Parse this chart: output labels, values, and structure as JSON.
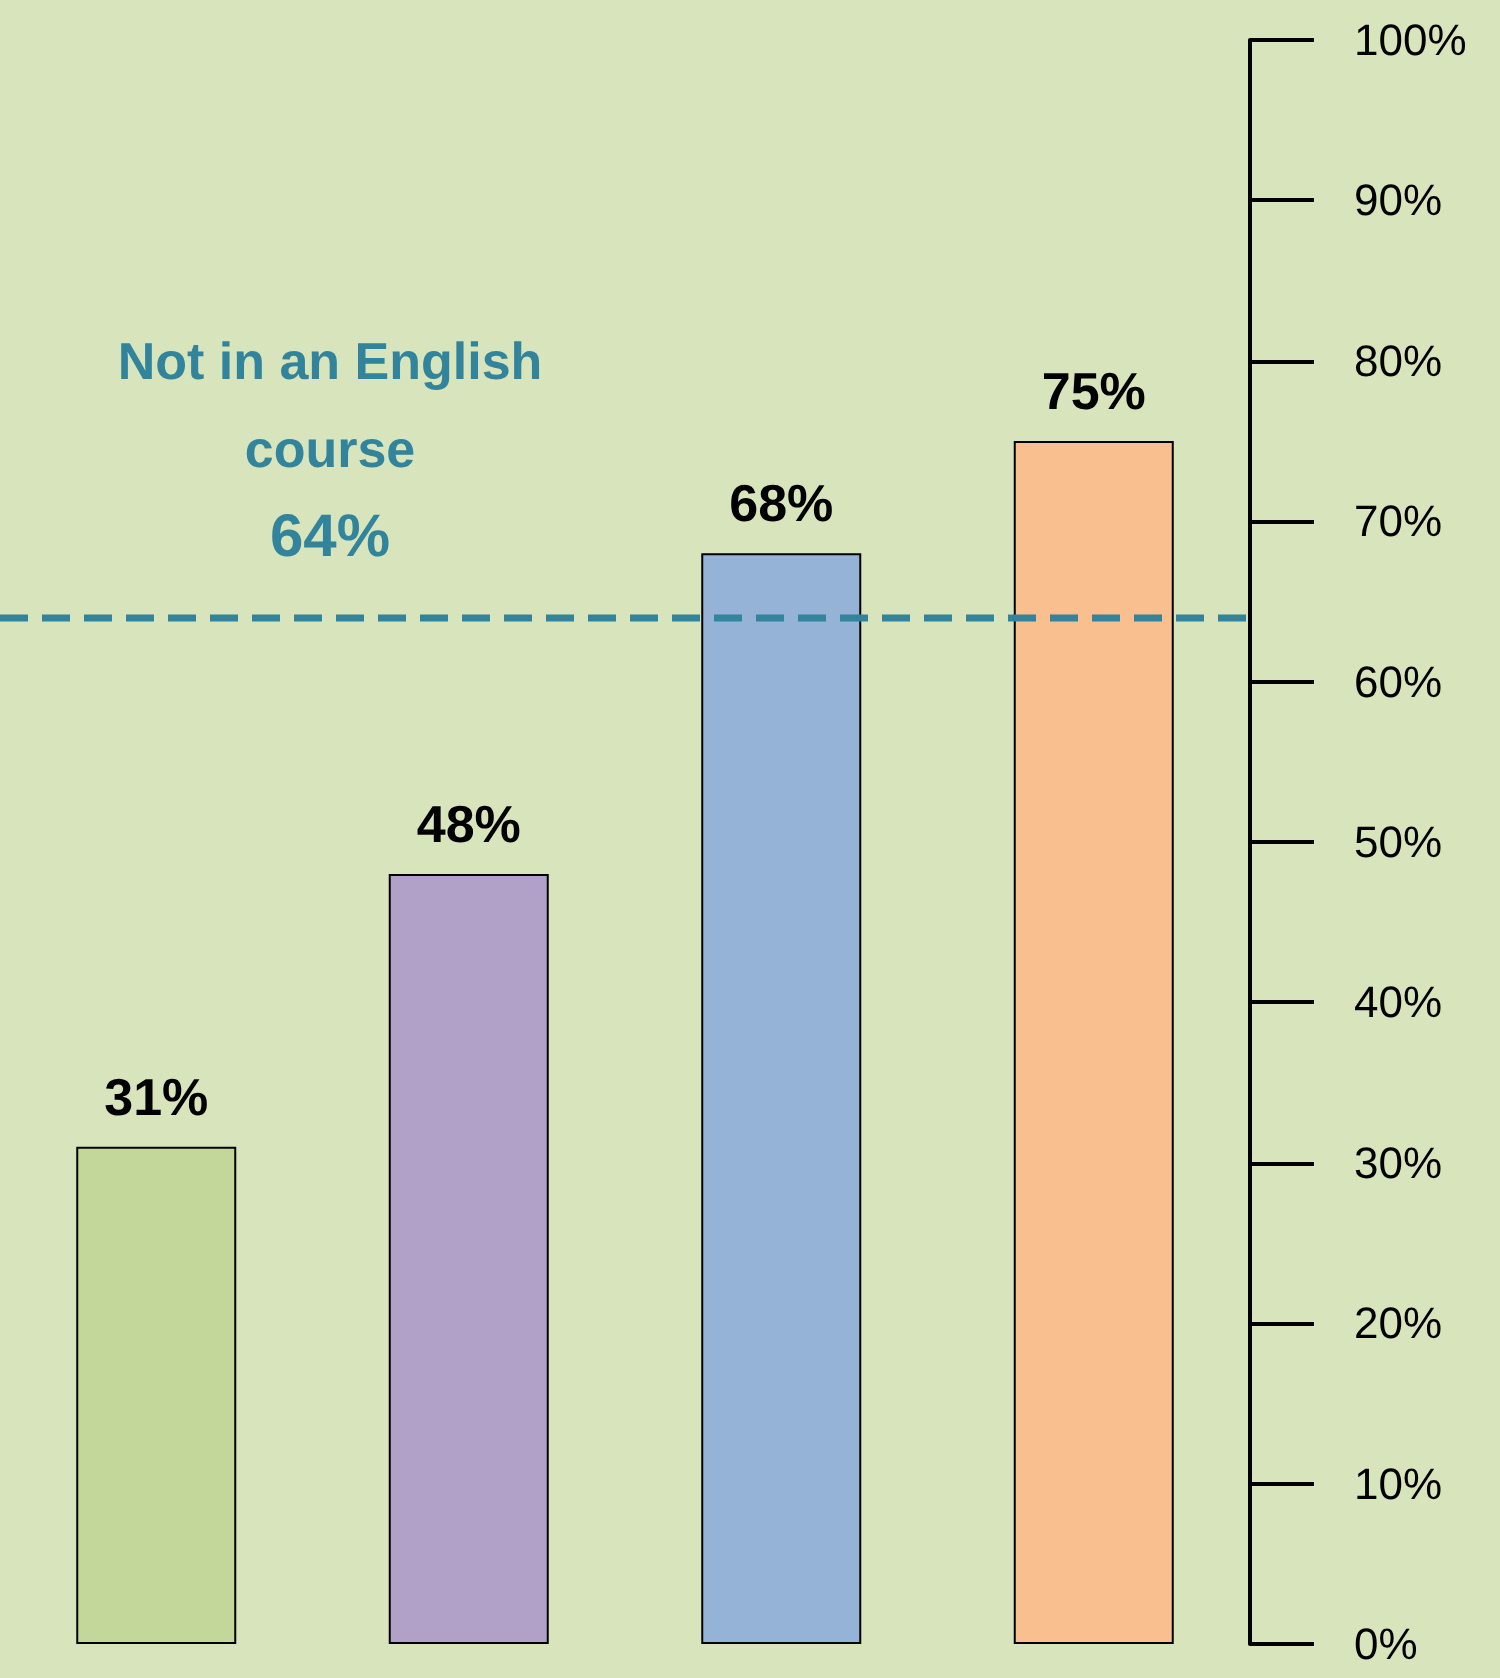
{
  "chart_data": {
    "type": "bar",
    "categories": [
      null,
      null,
      null,
      null
    ],
    "values": [
      31,
      48,
      68,
      75
    ],
    "colors": [
      "#c4d79b",
      "#b1a0c7",
      "#95b3d7",
      "#fabf8f"
    ],
    "value_labels": [
      "31%",
      "48%",
      "68%",
      "75%"
    ],
    "ylim": [
      0,
      100
    ],
    "yticks": [
      {
        "value": 0,
        "label": "0%"
      },
      {
        "value": 10,
        "label": "10%"
      },
      {
        "value": 20,
        "label": "20%"
      },
      {
        "value": 30,
        "label": "30%"
      },
      {
        "value": 40,
        "label": "40%"
      },
      {
        "value": 50,
        "label": "50%"
      },
      {
        "value": 60,
        "label": "60%"
      },
      {
        "value": 70,
        "label": "70%"
      },
      {
        "value": 80,
        "label": "80%"
      },
      {
        "value": 90,
        "label": "90%"
      },
      {
        "value": 100,
        "label": "100%"
      }
    ],
    "ref_lines": [
      {
        "axis": "y",
        "value": 64,
        "label": "Not in an English course 64%",
        "color": "#31849b",
        "line_style": "dashed"
      }
    ],
    "tick_labels": "y",
    "grid": false
  }
}
